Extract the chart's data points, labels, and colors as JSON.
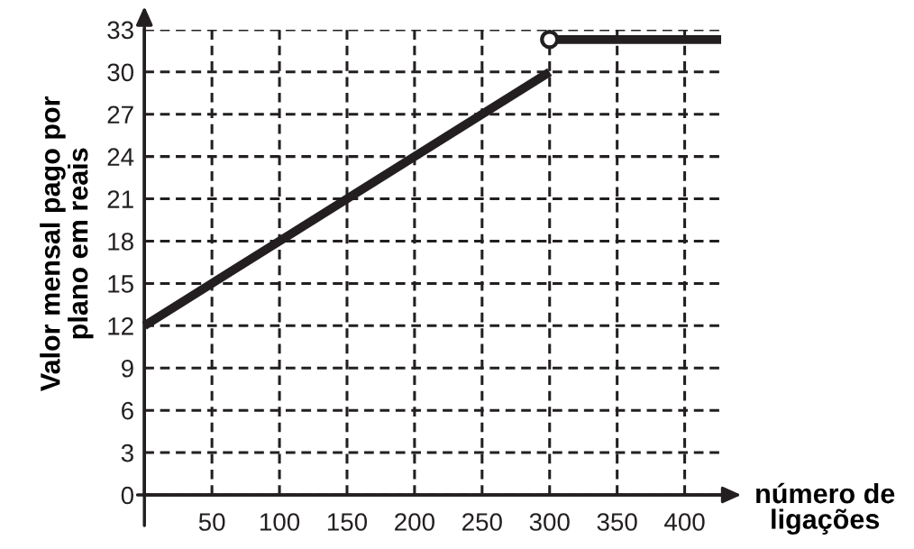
{
  "chart_data": {
    "type": "line",
    "xlabel": "número de\nligações",
    "ylabel": "Valor mensal pago por\nplano em reais",
    "series": [
      {
        "x": [
          0,
          300
        ],
        "values": [
          12,
          30
        ],
        "color": "#231f20"
      },
      {
        "x": [
          300,
          427
        ],
        "values": [
          32.3,
          32.3
        ],
        "color": "#231f20"
      },
      {
        "type": "scatter",
        "x": [
          300
        ],
        "values": [
          32.3
        ],
        "color": "#231f20",
        "marker": "circle"
      }
    ],
    "xlim": [
      0,
      427
    ],
    "ylim": [
      0,
      33
    ],
    "xticks": [
      50,
      100,
      150,
      200,
      250,
      300,
      350,
      400
    ],
    "yticks": [
      0,
      3,
      6,
      9,
      12,
      15,
      18,
      21,
      24,
      27,
      30,
      33
    ],
    "grid": true,
    "marker": "none",
    "line_style": "solid"
  }
}
